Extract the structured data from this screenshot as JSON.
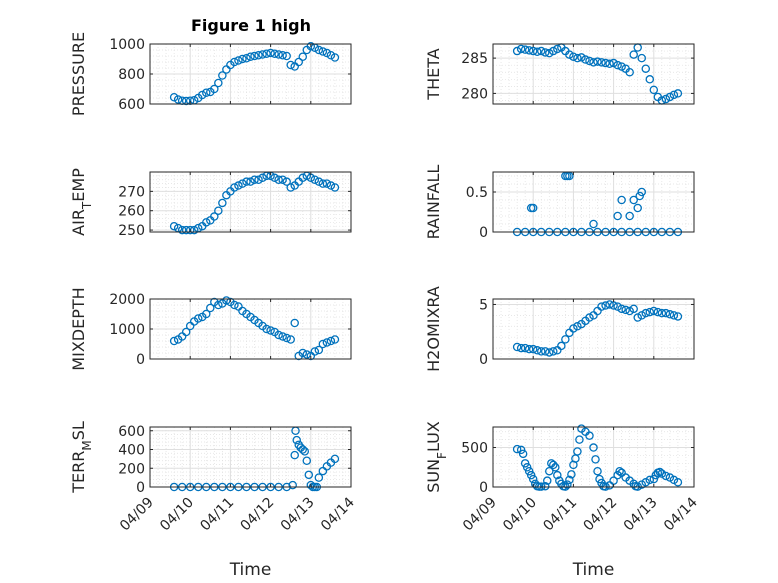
{
  "figure": {
    "title": "Figure 1 high",
    "marker_color": "#0072BD",
    "axis_color": "#262626",
    "grid_color": "#DFDFDF"
  },
  "chart_data": [
    {
      "type": "scatter",
      "ylabel": "PRESSURE",
      "xlim": [
        "2004-04-09",
        "2004-04-14"
      ],
      "xticks": [
        "04/09",
        "04/10",
        "04/11",
        "04/12",
        "04/13",
        "04/14"
      ],
      "show_xticklabels": false,
      "ylim": [
        600,
        1000
      ],
      "yticks": [
        600,
        800,
        1000
      ],
      "grid": true,
      "series": [
        {
          "x": [
            9.6,
            9.7,
            9.8,
            9.9,
            10.0,
            10.1,
            10.2,
            10.3,
            10.4,
            10.5,
            10.6,
            10.7,
            10.8,
            10.9,
            11.0,
            11.1,
            11.2,
            11.3,
            11.4,
            11.5,
            11.6,
            11.7,
            11.8,
            11.9,
            12.0,
            12.1,
            12.2,
            12.3,
            12.4,
            12.5,
            12.6,
            12.7,
            12.8,
            12.9,
            13.0,
            13.1,
            13.2,
            13.3,
            13.4,
            13.5,
            13.6
          ],
          "y": [
            645,
            630,
            622,
            620,
            622,
            625,
            640,
            660,
            675,
            680,
            700,
            740,
            790,
            830,
            860,
            880,
            890,
            900,
            905,
            915,
            920,
            925,
            930,
            935,
            940,
            935,
            930,
            925,
            920,
            860,
            850,
            880,
            915,
            960,
            985,
            975,
            960,
            950,
            940,
            925,
            910
          ]
        }
      ]
    },
    {
      "type": "scatter",
      "ylabel": "THETA",
      "xlim": [
        "2004-04-09",
        "2004-04-14"
      ],
      "xticks": [
        "04/09",
        "04/10",
        "04/11",
        "04/12",
        "04/13",
        "04/14"
      ],
      "show_xticklabels": false,
      "ylim": [
        278.5,
        287
      ],
      "yticks": [
        280,
        285
      ],
      "grid": true,
      "series": [
        {
          "x": [
            9.6,
            9.7,
            9.8,
            9.9,
            10.0,
            10.1,
            10.2,
            10.3,
            10.4,
            10.5,
            10.6,
            10.7,
            10.8,
            10.9,
            11.0,
            11.1,
            11.2,
            11.3,
            11.4,
            11.5,
            11.6,
            11.7,
            11.8,
            11.9,
            12.0,
            12.1,
            12.2,
            12.3,
            12.4,
            12.5,
            12.6,
            12.7,
            12.8,
            12.9,
            13.0,
            13.1,
            13.2,
            13.3,
            13.4,
            13.5,
            13.6
          ],
          "y": [
            286.0,
            286.3,
            286.2,
            286.1,
            286.0,
            285.9,
            286.0,
            285.8,
            285.7,
            286.0,
            286.3,
            286.5,
            286.0,
            285.5,
            285.2,
            285.0,
            285.1,
            284.8,
            284.6,
            284.4,
            284.5,
            284.4,
            284.3,
            284.2,
            284.3,
            284.0,
            283.8,
            283.5,
            283.0,
            285.5,
            286.5,
            285.0,
            283.5,
            282.0,
            280.5,
            279.5,
            279.0,
            279.2,
            279.5,
            279.8,
            280.0
          ]
        }
      ]
    },
    {
      "type": "scatter",
      "ylabel": "AIR_TEMP",
      "xlim": [
        "2004-04-09",
        "2004-04-14"
      ],
      "xticks": [
        "04/09",
        "04/10",
        "04/11",
        "04/12",
        "04/13",
        "04/14"
      ],
      "show_xticklabels": false,
      "ylim": [
        249,
        280
      ],
      "yticks": [
        250,
        260,
        270
      ],
      "grid": true,
      "series": [
        {
          "x": [
            9.6,
            9.7,
            9.8,
            9.9,
            10.0,
            10.1,
            10.2,
            10.3,
            10.4,
            10.5,
            10.6,
            10.7,
            10.8,
            10.9,
            11.0,
            11.1,
            11.2,
            11.3,
            11.4,
            11.5,
            11.6,
            11.7,
            11.8,
            11.9,
            12.0,
            12.1,
            12.2,
            12.3,
            12.4,
            12.5,
            12.6,
            12.7,
            12.8,
            12.9,
            13.0,
            13.1,
            13.2,
            13.3,
            13.4,
            13.5,
            13.6
          ],
          "y": [
            252,
            251,
            250,
            250,
            250,
            250,
            251,
            252,
            254,
            255,
            257,
            260,
            264,
            268,
            270,
            272,
            273,
            274,
            275,
            275,
            276,
            276,
            277,
            278,
            278,
            277,
            276,
            276,
            275,
            272,
            273,
            275,
            277,
            278,
            277,
            276,
            275,
            274,
            274,
            273,
            272
          ]
        }
      ]
    },
    {
      "type": "scatter",
      "ylabel": "RAINFALL",
      "xlim": [
        "2004-04-09",
        "2004-04-14"
      ],
      "xticks": [
        "04/09",
        "04/10",
        "04/11",
        "04/12",
        "04/13",
        "04/14"
      ],
      "show_xticklabels": false,
      "ylim": [
        0,
        0.75
      ],
      "yticks": [
        0,
        0.5
      ],
      "grid": true,
      "series": [
        {
          "x": [
            9.6,
            9.8,
            10.0,
            10.2,
            10.4,
            10.6,
            10.8,
            11.0,
            11.2,
            11.4,
            11.6,
            11.8,
            12.0,
            12.2,
            12.4,
            12.6,
            12.8,
            13.0,
            13.2,
            13.4,
            13.6,
            9.95,
            10.0,
            10.8,
            10.85,
            10.9,
            11.5,
            12.1,
            12.2,
            12.4,
            12.5,
            12.6,
            12.65,
            12.7
          ],
          "y": [
            0,
            0,
            0,
            0,
            0,
            0,
            0,
            0,
            0,
            0,
            0,
            0,
            0,
            0,
            0,
            0,
            0,
            0,
            0,
            0,
            0,
            0.3,
            0.3,
            0.7,
            0.7,
            0.7,
            0.1,
            0.2,
            0.4,
            0.2,
            0.4,
            0.3,
            0.45,
            0.5
          ]
        }
      ]
    },
    {
      "type": "scatter",
      "ylabel": "MIXDEPTH",
      "xlim": [
        "2004-04-09",
        "2004-04-14"
      ],
      "xticks": [
        "04/09",
        "04/10",
        "04/11",
        "04/12",
        "04/13",
        "04/14"
      ],
      "show_xticklabels": false,
      "ylim": [
        0,
        2000
      ],
      "yticks": [
        0,
        1000,
        2000
      ],
      "grid": true,
      "series": [
        {
          "x": [
            9.6,
            9.7,
            9.8,
            9.9,
            10.0,
            10.1,
            10.2,
            10.3,
            10.4,
            10.5,
            10.6,
            10.7,
            10.8,
            10.9,
            11.0,
            11.1,
            11.2,
            11.3,
            11.4,
            11.5,
            11.6,
            11.7,
            11.8,
            11.9,
            12.0,
            12.1,
            12.2,
            12.3,
            12.4,
            12.5,
            12.6,
            12.7,
            12.8,
            12.9,
            13.0,
            13.1,
            13.2,
            13.3,
            13.4,
            13.5,
            13.6
          ],
          "y": [
            600,
            650,
            750,
            900,
            1100,
            1250,
            1350,
            1400,
            1500,
            1700,
            1900,
            1800,
            1850,
            1950,
            1900,
            1800,
            1750,
            1600,
            1500,
            1400,
            1300,
            1200,
            1100,
            1000,
            950,
            900,
            800,
            750,
            700,
            650,
            1200,
            100,
            200,
            150,
            100,
            250,
            300,
            500,
            550,
            600,
            650
          ]
        }
      ]
    },
    {
      "type": "scatter",
      "ylabel": "H2OMIXRA",
      "xlim": [
        "2004-04-09",
        "2004-04-14"
      ],
      "xticks": [
        "04/09",
        "04/10",
        "04/11",
        "04/12",
        "04/13",
        "04/14"
      ],
      "show_xticklabels": false,
      "ylim": [
        0,
        5.5
      ],
      "yticks": [
        0,
        5
      ],
      "grid": true,
      "series": [
        {
          "x": [
            9.6,
            9.7,
            9.8,
            9.9,
            10.0,
            10.1,
            10.2,
            10.3,
            10.4,
            10.5,
            10.6,
            10.7,
            10.8,
            10.9,
            11.0,
            11.1,
            11.2,
            11.3,
            11.4,
            11.5,
            11.6,
            11.7,
            11.8,
            11.9,
            12.0,
            12.1,
            12.2,
            12.3,
            12.4,
            12.5,
            12.6,
            12.7,
            12.8,
            12.9,
            13.0,
            13.1,
            13.2,
            13.3,
            13.4,
            13.5,
            13.6
          ],
          "y": [
            1.1,
            1.0,
            1.0,
            0.9,
            0.9,
            0.8,
            0.7,
            0.7,
            0.6,
            0.7,
            0.8,
            1.2,
            1.8,
            2.4,
            2.8,
            3.0,
            3.2,
            3.5,
            3.8,
            4.0,
            4.4,
            4.8,
            4.9,
            5.0,
            4.9,
            4.8,
            4.6,
            4.5,
            4.4,
            4.6,
            3.8,
            4.0,
            4.2,
            4.3,
            4.4,
            4.3,
            4.2,
            4.2,
            4.1,
            4.0,
            3.9
          ]
        }
      ]
    },
    {
      "type": "scatter",
      "ylabel": "TERR_MSL",
      "xlim": [
        "2004-04-09",
        "2004-04-14"
      ],
      "xticks": [
        "04/09",
        "04/10",
        "04/11",
        "04/12",
        "04/13",
        "04/14"
      ],
      "show_xticklabels": true,
      "xlabel": "Time",
      "ylim": [
        0,
        640
      ],
      "yticks": [
        0,
        200,
        400,
        600
      ],
      "grid": true,
      "series": [
        {
          "x": [
            9.6,
            9.8,
            10.0,
            10.2,
            10.4,
            10.6,
            10.8,
            11.0,
            11.2,
            11.4,
            11.6,
            11.8,
            12.0,
            12.2,
            12.4,
            12.55,
            12.6,
            12.62,
            12.65,
            12.7,
            12.75,
            12.8,
            12.85,
            12.9,
            12.95,
            13.0,
            13.05,
            13.1,
            13.15,
            13.2,
            13.3,
            13.4,
            13.5,
            13.6
          ],
          "y": [
            0,
            0,
            0,
            0,
            0,
            0,
            0,
            0,
            0,
            0,
            0,
            0,
            0,
            0,
            0,
            20,
            340,
            600,
            500,
            450,
            420,
            400,
            380,
            280,
            130,
            20,
            0,
            0,
            0,
            100,
            170,
            220,
            260,
            300
          ]
        }
      ]
    },
    {
      "type": "scatter",
      "ylabel": "SUN_FLUX",
      "xlim": [
        "2004-04-09",
        "2004-04-14"
      ],
      "xticks": [
        "04/09",
        "04/10",
        "04/11",
        "04/12",
        "04/13",
        "04/14"
      ],
      "show_xticklabels": true,
      "xlabel": "Time",
      "ylim": [
        0,
        760
      ],
      "yticks": [
        0,
        500
      ],
      "grid": true,
      "series": [
        {
          "x": [
            9.6,
            9.7,
            9.75,
            9.8,
            9.85,
            9.9,
            9.95,
            10.0,
            10.05,
            10.1,
            10.15,
            10.2,
            10.3,
            10.35,
            10.4,
            10.45,
            10.5,
            10.55,
            10.6,
            10.65,
            10.7,
            10.75,
            10.8,
            10.85,
            10.9,
            10.95,
            11.0,
            11.05,
            11.1,
            11.15,
            11.2,
            11.3,
            11.4,
            11.5,
            11.55,
            11.6,
            11.65,
            11.7,
            11.75,
            11.8,
            11.9,
            12.0,
            12.1,
            12.15,
            12.2,
            12.3,
            12.4,
            12.5,
            12.55,
            12.6,
            12.7,
            12.8,
            12.9,
            13.0,
            13.05,
            13.1,
            13.15,
            13.2,
            13.3,
            13.4,
            13.5,
            13.6
          ],
          "y": [
            480,
            470,
            420,
            300,
            250,
            200,
            150,
            100,
            40,
            10,
            5,
            5,
            10,
            80,
            200,
            300,
            280,
            250,
            150,
            80,
            40,
            10,
            5,
            30,
            90,
            160,
            280,
            360,
            450,
            600,
            740,
            700,
            650,
            500,
            350,
            200,
            100,
            50,
            10,
            5,
            20,
            80,
            150,
            200,
            180,
            120,
            80,
            40,
            10,
            5,
            30,
            60,
            90,
            100,
            150,
            180,
            190,
            170,
            140,
            120,
            90,
            60
          ]
        }
      ]
    }
  ]
}
